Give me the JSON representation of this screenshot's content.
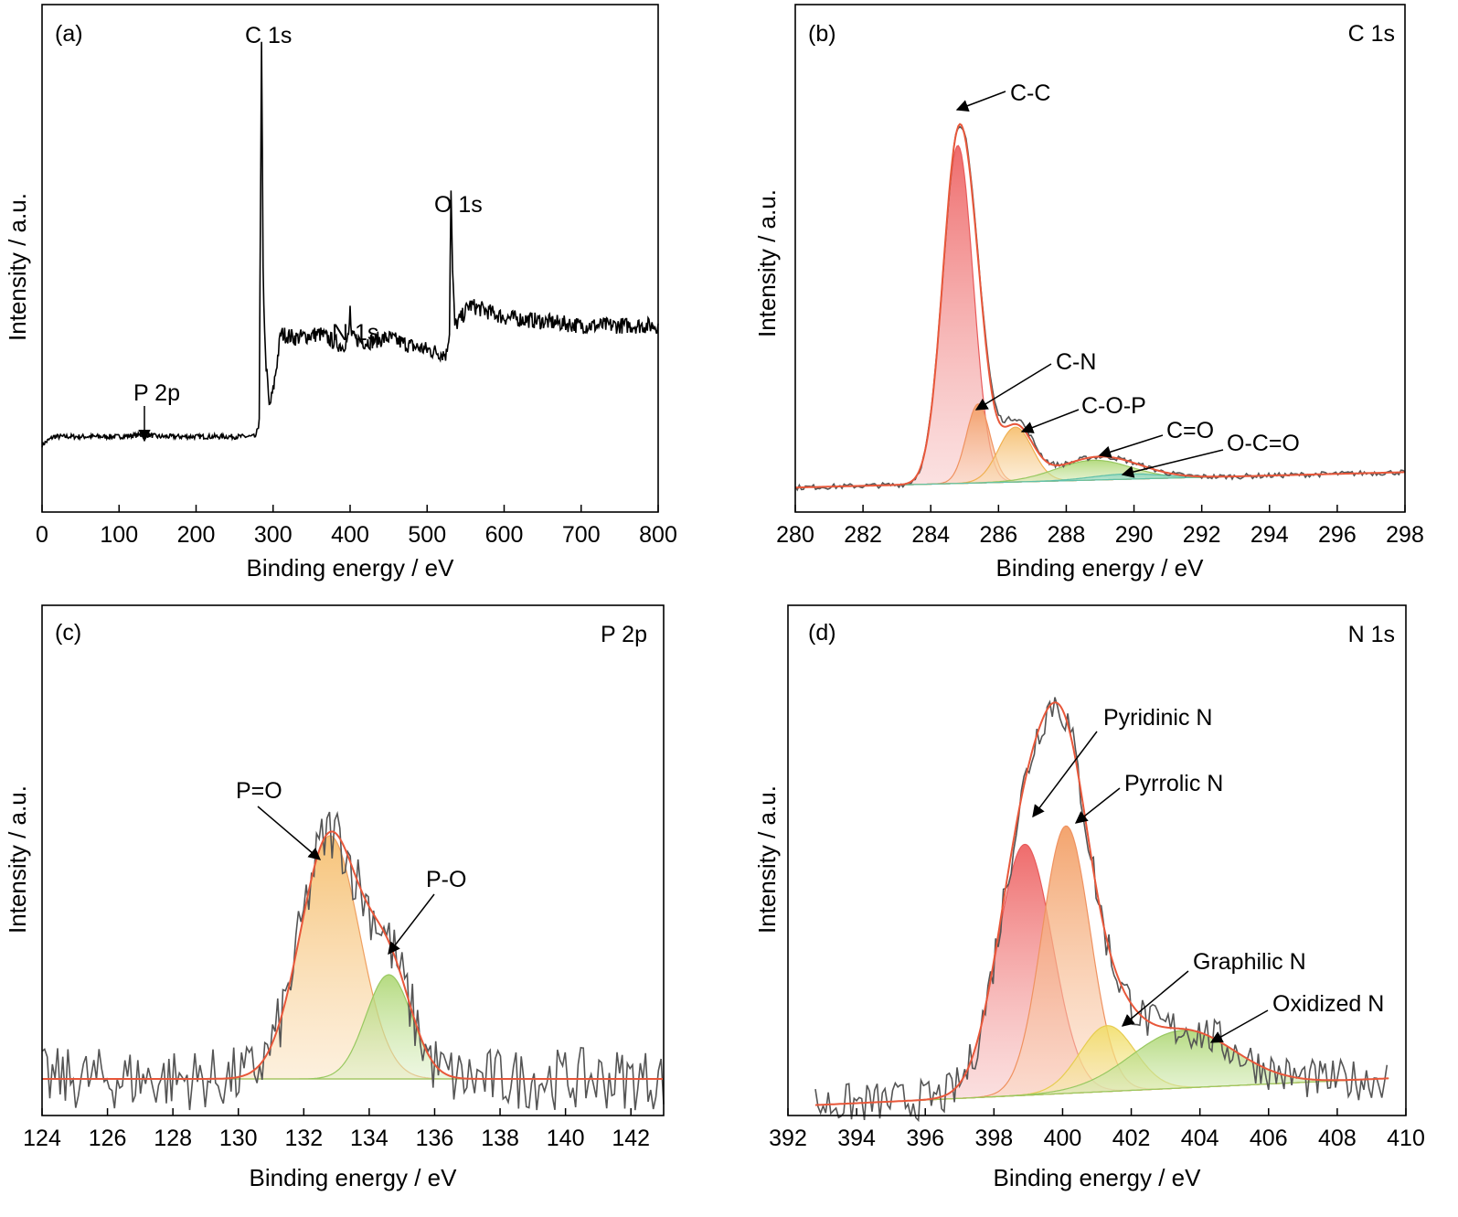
{
  "chart_data": [
    {
      "type": "line",
      "panel_label": "(a)",
      "xlabel": "Binding energy / eV",
      "ylabel": "Intensity / a.u.",
      "xlim": [
        0,
        800
      ],
      "x_ticks": [
        0,
        100,
        200,
        300,
        400,
        500,
        600,
        700,
        800
      ],
      "y_ticks": "none",
      "series": [
        {
          "color": "#000000",
          "points": [
            [
              0,
              0.03
            ],
            [
              15,
              0.05
            ],
            [
              50,
              0.05
            ],
            [
              100,
              0.05
            ],
            [
              135,
              0.055
            ],
            [
              150,
              0.05
            ],
            [
              200,
              0.05
            ],
            [
              250,
              0.05
            ],
            [
              278,
              0.05
            ],
            [
              282,
              0.1
            ],
            [
              285,
              1.0
            ],
            [
              287,
              0.45
            ],
            [
              290,
              0.25
            ],
            [
              295,
              0.12
            ],
            [
              300,
              0.16
            ],
            [
              310,
              0.3
            ],
            [
              330,
              0.29
            ],
            [
              360,
              0.3
            ],
            [
              390,
              0.27
            ],
            [
              398,
              0.29
            ],
            [
              400,
              0.36
            ],
            [
              402,
              0.29
            ],
            [
              420,
              0.28
            ],
            [
              450,
              0.29
            ],
            [
              480,
              0.27
            ],
            [
              525,
              0.25
            ],
            [
              529,
              0.31
            ],
            [
              531,
              0.66
            ],
            [
              533,
              0.45
            ],
            [
              536,
              0.32
            ],
            [
              545,
              0.34
            ],
            [
              555,
              0.37
            ],
            [
              600,
              0.34
            ],
            [
              650,
              0.33
            ],
            [
              700,
              0.32
            ],
            [
              800,
              0.32
            ]
          ]
        }
      ],
      "annotations": [
        {
          "text": "C 1s",
          "x": 285,
          "y": 1.0
        },
        {
          "text": "O 1s",
          "x": 531,
          "y": 0.66
        },
        {
          "text": "N 1s",
          "x": 400,
          "y": 0.36
        },
        {
          "text": "P 2p",
          "x": 135,
          "y": 0.055,
          "arrow": true
        }
      ]
    },
    {
      "type": "area",
      "panel_label": "(b)",
      "corner_label": "C 1s",
      "xlabel": "Binding energy / eV",
      "ylabel": "Intensity / a.u.",
      "xlim": [
        280,
        298
      ],
      "x_ticks": [
        280,
        282,
        284,
        286,
        288,
        290,
        292,
        294,
        296,
        298
      ],
      "y_ticks": "none",
      "colors": {
        "raw": "#555555",
        "envelope": "#e8573a",
        "c_c": "#ee6464",
        "c_n": "#f29a5e",
        "c_o_p": "#f5bc58",
        "c_eq_o": "#a8d46a",
        "o_c_eq_o": "#74cdb8"
      },
      "components": [
        {
          "label": "C-C",
          "center": 284.8,
          "height": 0.77,
          "sigma": 0.45
        },
        {
          "label": "C-N",
          "center": 285.4,
          "height": 0.18,
          "sigma": 0.35
        },
        {
          "label": "C-O-P",
          "center": 286.5,
          "height": 0.125,
          "sigma": 0.5
        },
        {
          "label": "C=O",
          "center": 288.8,
          "height": 0.045,
          "sigma": 1.1
        },
        {
          "label": "O-C=O",
          "center": 289.8,
          "height": 0.012,
          "sigma": 1.0
        }
      ],
      "baseline": {
        "y_at_xmin": 0.01,
        "y_at_xmax": 0.045
      }
    },
    {
      "type": "area",
      "panel_label": "(c)",
      "corner_label": "P 2p",
      "xlabel": "Binding energy / eV",
      "ylabel": "Intensity / a.u.",
      "xlim": [
        124,
        143
      ],
      "x_ticks": [
        124,
        126,
        128,
        130,
        132,
        134,
        136,
        138,
        140,
        142
      ],
      "y_ticks": "none",
      "colors": {
        "raw": "#555555",
        "envelope": "#e8573a",
        "p_eq_o": "#f5bc6a",
        "p_o": "#a8d46a"
      },
      "components": [
        {
          "label": "P=O",
          "center": 132.8,
          "height": 0.7,
          "sigma": 0.9
        },
        {
          "label": "P-O",
          "center": 134.6,
          "height": 0.3,
          "sigma": 0.7
        }
      ],
      "baseline": {
        "y_at_xmin": 0.0,
        "y_at_xmax": 0.0
      }
    },
    {
      "type": "area",
      "panel_label": "(d)",
      "corner_label": "N 1s",
      "xlabel": "Binding energy / eV",
      "ylabel": "Intensity / a.u.",
      "xlim": [
        392,
        410
      ],
      "x_ticks": [
        392,
        394,
        396,
        398,
        400,
        402,
        404,
        406,
        408,
        410
      ],
      "y_ticks": "none",
      "colors": {
        "raw": "#555555",
        "envelope": "#e8573a",
        "pyridinic": "#ee6464",
        "pyrrolic": "#f29a5e",
        "graphilic": "#f0dc60",
        "oxidized": "#a8d46a"
      },
      "components": [
        {
          "label": "Pyridinic N",
          "center": 398.9,
          "height": 0.61,
          "sigma": 0.8
        },
        {
          "label": "Pyrrolic N",
          "center": 400.1,
          "height": 0.65,
          "sigma": 0.7
        },
        {
          "label": "Graphilic N",
          "center": 401.3,
          "height": 0.16,
          "sigma": 0.8
        },
        {
          "label": "Oxidized N",
          "center": 403.5,
          "height": 0.14,
          "sigma": 1.5
        }
      ],
      "baseline": {
        "y_at_xmin": 0.0,
        "y_at_xmax": 0.07
      }
    }
  ]
}
